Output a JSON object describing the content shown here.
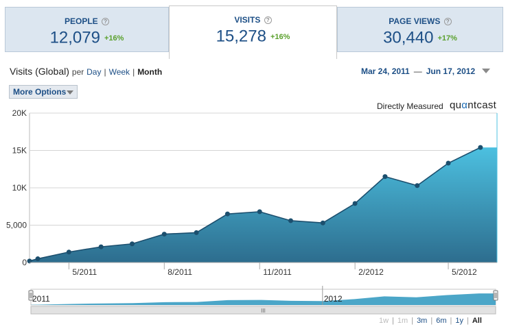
{
  "tabs": [
    {
      "label": "PEOPLE",
      "value": "12,079",
      "change": "+16%"
    },
    {
      "label": "VISITS",
      "value": "15,278",
      "change": "+16%"
    },
    {
      "label": "PAGE VIEWS",
      "value": "30,440",
      "change": "+17%"
    }
  ],
  "header": {
    "title": "Visits (Global)",
    "per": "per",
    "day": "Day",
    "week": "Week",
    "month": "Month"
  },
  "range": {
    "start": "Mar 24, 2011",
    "dash": "—",
    "end": "Jun 17, 2012"
  },
  "more_options": "More Options",
  "measured": "Directly Measured",
  "brand": {
    "pre": "qu",
    "mark": "α",
    "post": "ntcast"
  },
  "navigator": {
    "labels": [
      "2011",
      "2012"
    ],
    "handle_glyph": "III"
  },
  "zoom": [
    "1w",
    "1m",
    "3m",
    "6m",
    "1y",
    "All"
  ],
  "colors": {
    "accent": "#1d4f86",
    "area_top": "#4cc0e0",
    "area_bottom": "#2d6d8e",
    "line": "#1c4f6e",
    "positive": "#5aa02c"
  },
  "chart_data": {
    "type": "area",
    "title": "Visits (Global)",
    "ylim": [
      0,
      20000
    ],
    "yticks": [
      "20K",
      "15K",
      "10K",
      "5,000",
      "0"
    ],
    "xticks": [
      "5/2011",
      "8/2011",
      "11/2011",
      "2/2012",
      "5/2012"
    ],
    "series": [
      {
        "name": "Visits",
        "points": [
          {
            "x": "2011-03-24",
            "y": 200
          },
          {
            "x": "2011-04-01",
            "y": 500
          },
          {
            "x": "2011-05-01",
            "y": 1400
          },
          {
            "x": "2011-06-01",
            "y": 2100
          },
          {
            "x": "2011-07-01",
            "y": 2500
          },
          {
            "x": "2011-08-01",
            "y": 3800
          },
          {
            "x": "2011-09-01",
            "y": 4000
          },
          {
            "x": "2011-10-01",
            "y": 6500
          },
          {
            "x": "2011-11-01",
            "y": 6800
          },
          {
            "x": "2011-12-01",
            "y": 5600
          },
          {
            "x": "2012-01-01",
            "y": 5300
          },
          {
            "x": "2012-02-01",
            "y": 7900
          },
          {
            "x": "2012-03-01",
            "y": 11500
          },
          {
            "x": "2012-04-01",
            "y": 10300
          },
          {
            "x": "2012-05-01",
            "y": 13300
          },
          {
            "x": "2012-06-01",
            "y": 15400
          }
        ]
      }
    ]
  }
}
